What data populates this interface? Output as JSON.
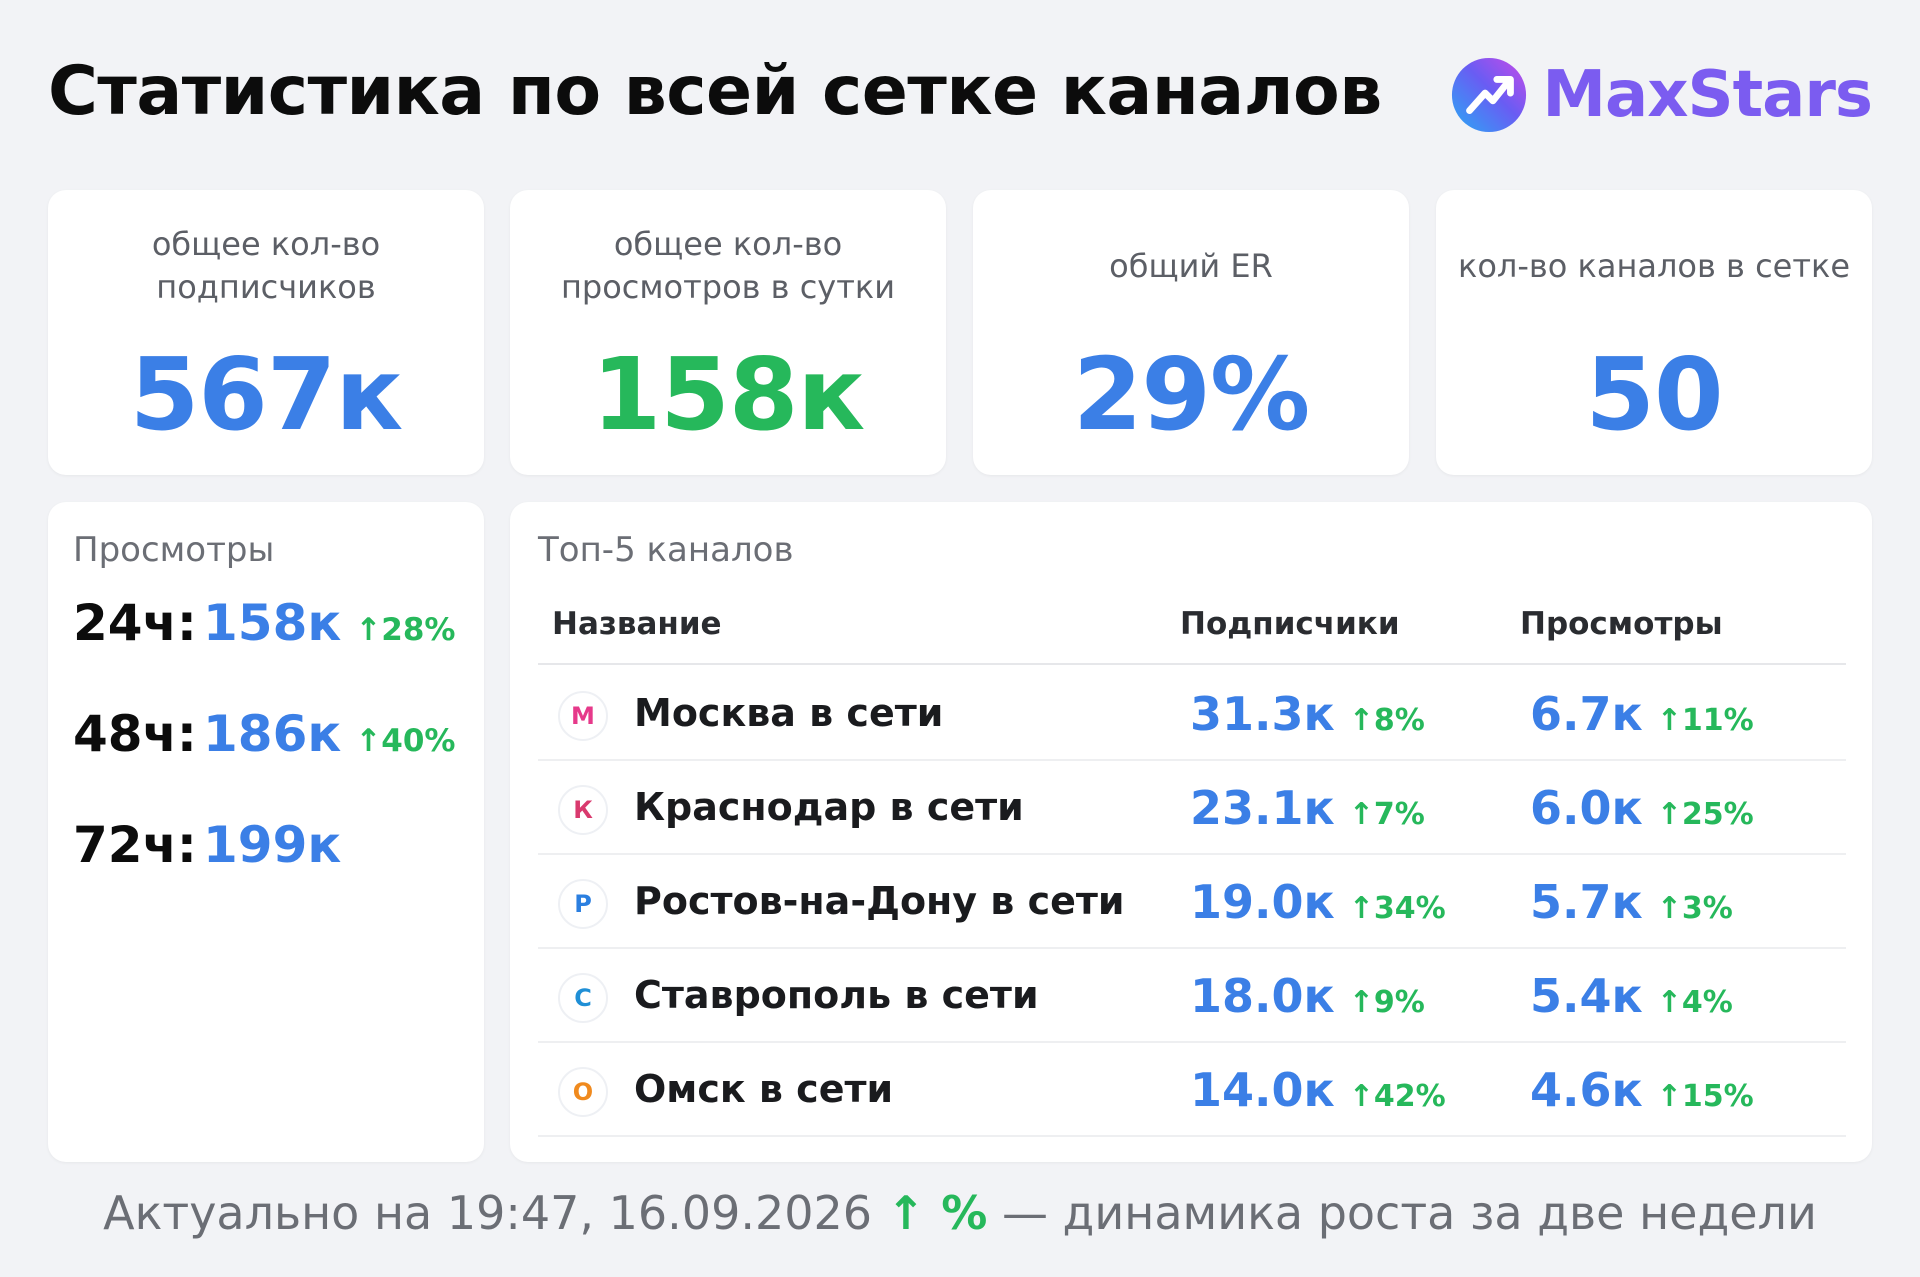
{
  "header": {
    "title": "Статистика по всей сетке каналов",
    "brand": "MaxStars",
    "brand_logo_icon": "chart-rising-icon"
  },
  "stats": [
    {
      "label": "общее кол-во подписчиков",
      "value": "567к",
      "color": "#3b7fe6"
    },
    {
      "label": "общее кол-во просмотров в сутки",
      "value": "158к",
      "color": "#26b85b"
    },
    {
      "label": "общий ER",
      "value": "29%",
      "color": "#3b7fe6"
    },
    {
      "label": "кол-во каналов в сетке",
      "value": "50",
      "color": "#3b7fe6"
    }
  ],
  "views": {
    "title": "Просмотры",
    "rows": [
      {
        "period": "24ч:",
        "value": "158к",
        "delta": "28%"
      },
      {
        "period": "48ч:",
        "value": "186к",
        "delta": "40%"
      },
      {
        "period": "72ч:",
        "value": "199к",
        "delta": ""
      }
    ]
  },
  "top": {
    "title": "Топ-5 каналов",
    "columns": [
      "Название",
      "Подписчики",
      "Просмотры"
    ],
    "rows": [
      {
        "icon_letter": "М",
        "icon_color": "#e6398a",
        "name": "Москва в сети",
        "subs": "31.3к",
        "subs_delta": "8%",
        "views": "6.7к",
        "views_delta": "11%"
      },
      {
        "icon_letter": "К",
        "icon_color": "#d93a6e",
        "name": "Краснодар в сети",
        "subs": "23.1к",
        "subs_delta": "7%",
        "views": "6.0к",
        "views_delta": "25%"
      },
      {
        "icon_letter": "Р",
        "icon_color": "#2b7fe0",
        "name": "Ростов-на-Дону в сети",
        "subs": "19.0к",
        "subs_delta": "34%",
        "views": "5.7к",
        "views_delta": "3%"
      },
      {
        "icon_letter": "С",
        "icon_color": "#1f8fd6",
        "name": "Ставрополь в сети",
        "subs": "18.0к",
        "subs_delta": "9%",
        "views": "5.4к",
        "views_delta": "4%"
      },
      {
        "icon_letter": "О",
        "icon_color": "#f08a1e",
        "name": "Омск в сети",
        "subs": "14.0к",
        "subs_delta": "42%",
        "views": "4.6к",
        "views_delta": "15%"
      }
    ]
  },
  "footer": {
    "prefix": "Актуально на 19:47, 16.09.2026",
    "highlight": "↑ %",
    "suffix": "— динамика роста за две недели"
  },
  "colors": {
    "accent_blue": "#3b7fe6",
    "accent_green": "#26b85b",
    "brand_purple": "#7b5cf0"
  }
}
